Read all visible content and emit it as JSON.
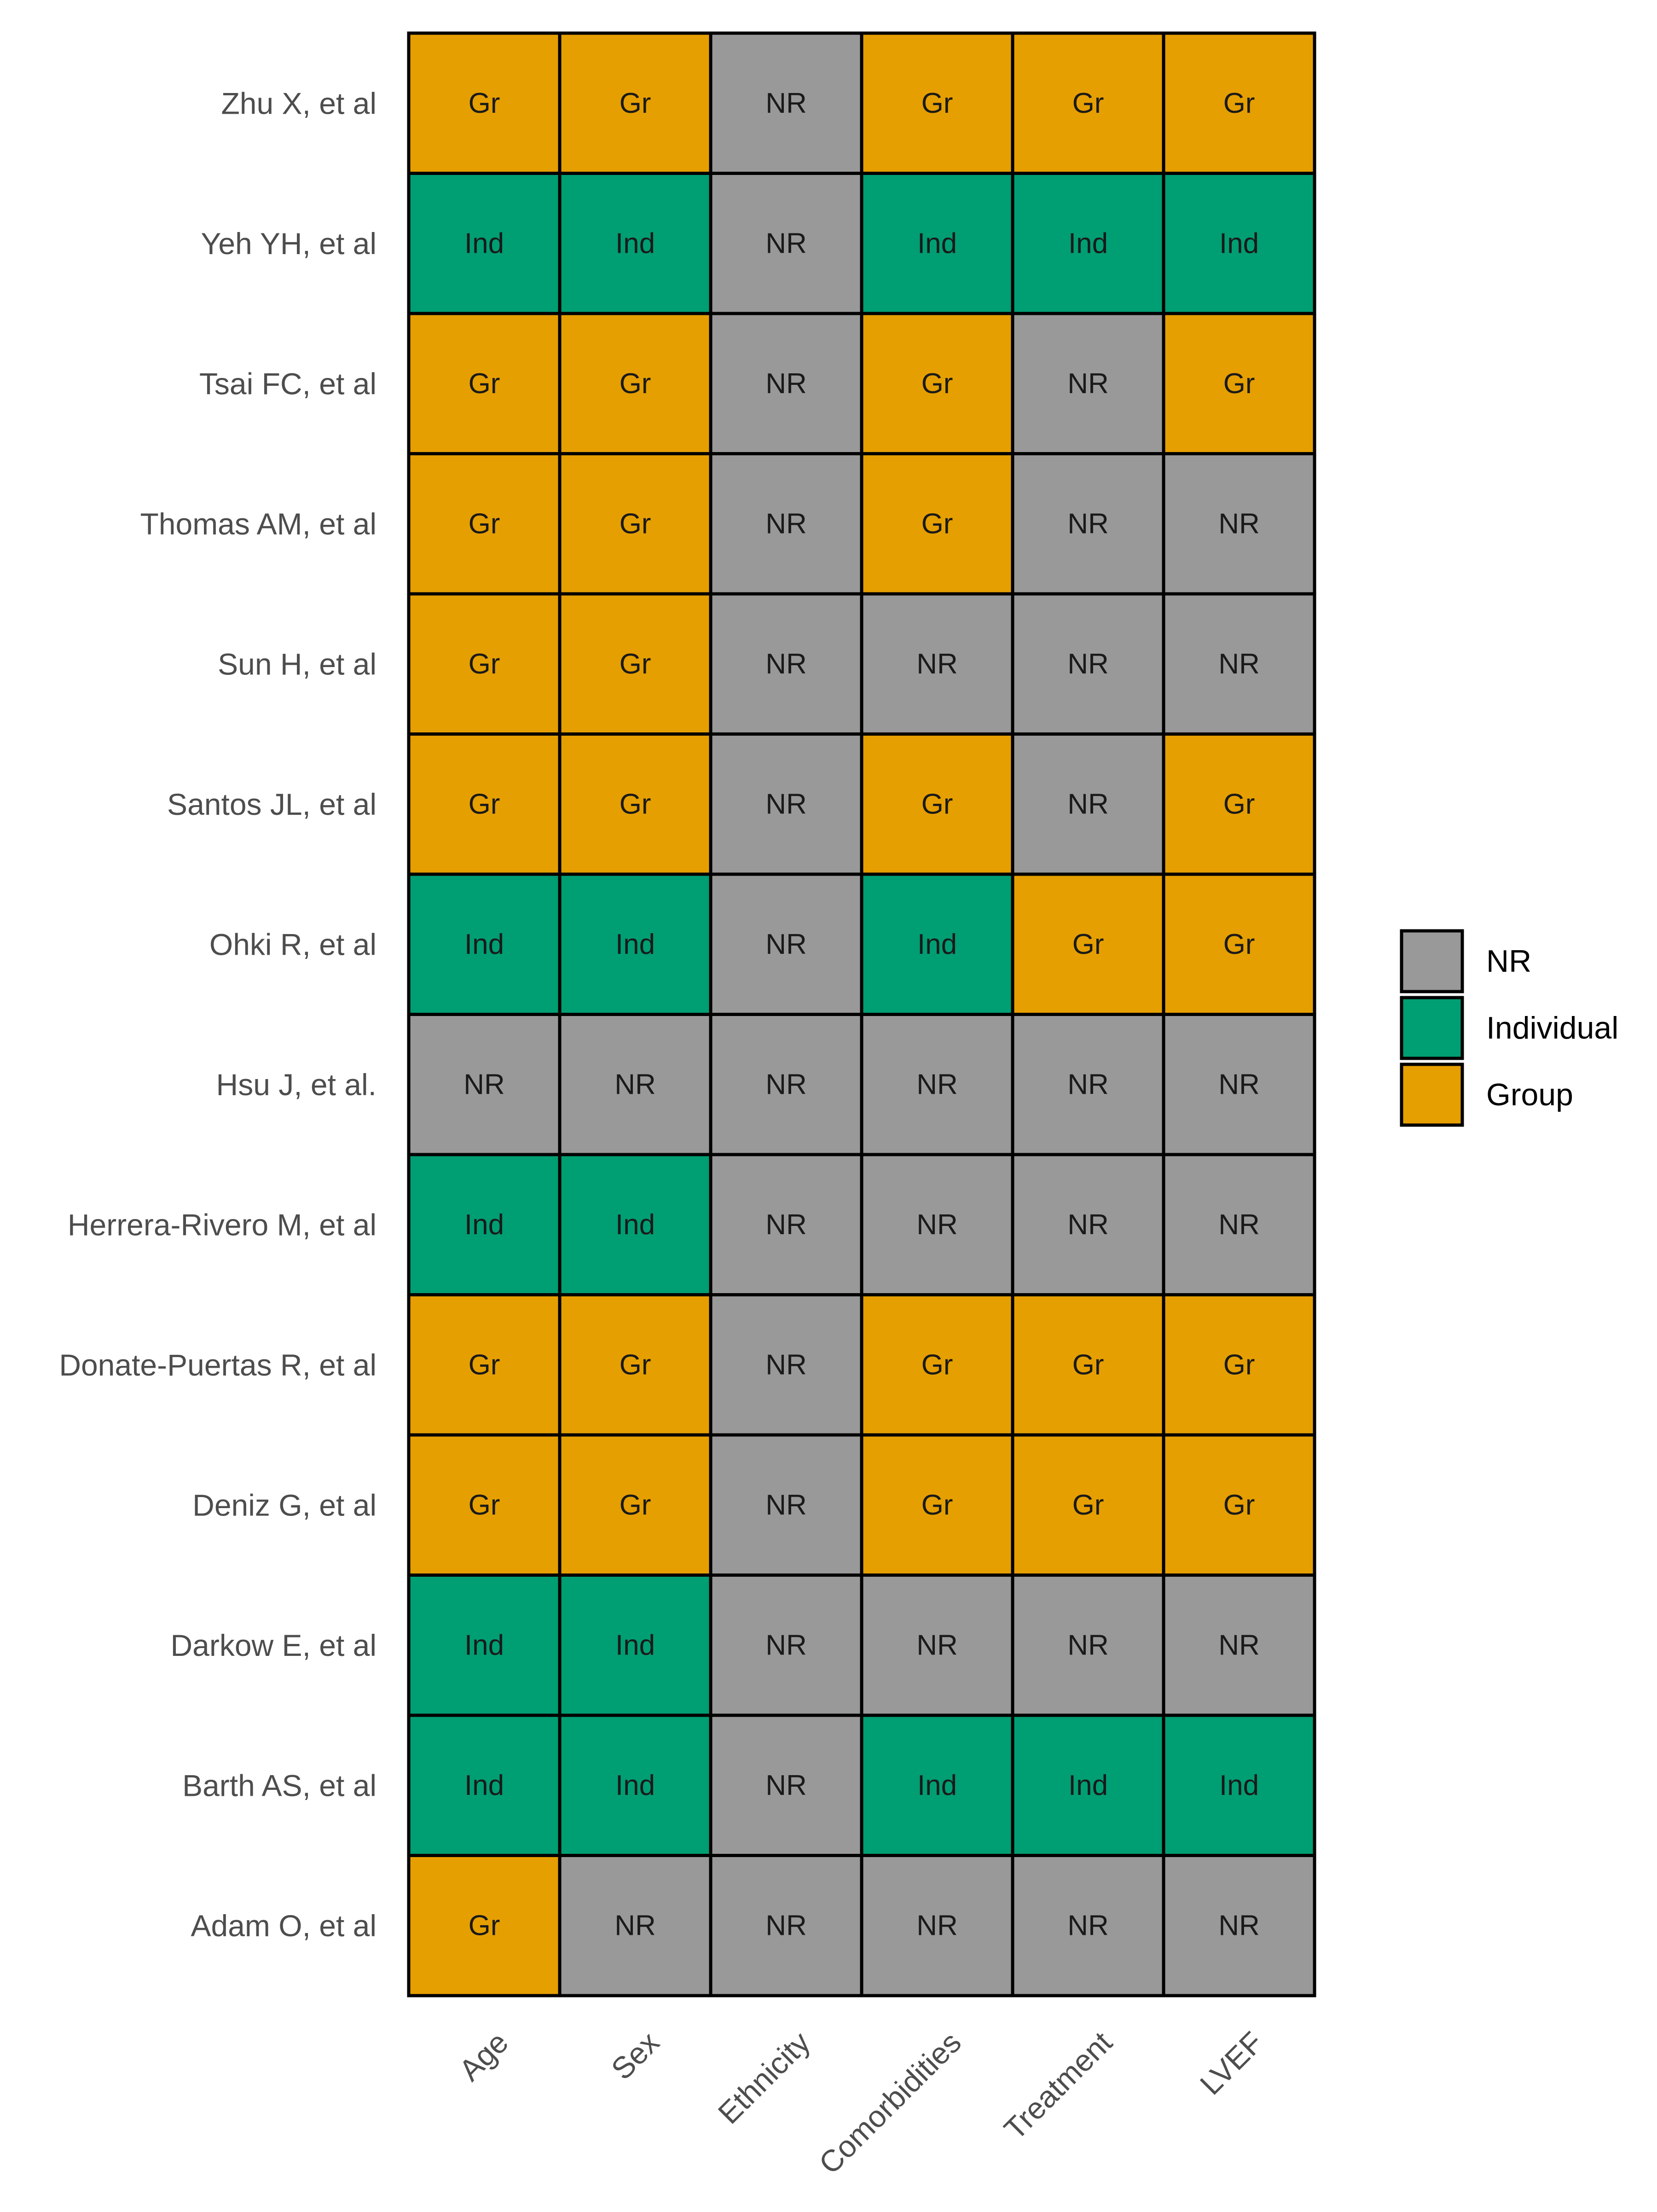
{
  "chart_data": {
    "type": "heatmap",
    "title": "",
    "xlabel": "",
    "ylabel": "",
    "columns": [
      "Age",
      "Sex",
      "Ethnicity",
      "Comorbidities",
      "Treatment",
      "LVEF"
    ],
    "rows": [
      {
        "study": "Zhu X, et al",
        "values": [
          "Gr",
          "Gr",
          "NR",
          "Gr",
          "Gr",
          "Gr"
        ]
      },
      {
        "study": "Yeh YH, et al",
        "values": [
          "Ind",
          "Ind",
          "NR",
          "Ind",
          "Ind",
          "Ind"
        ]
      },
      {
        "study": "Tsai FC, et al",
        "values": [
          "Gr",
          "Gr",
          "NR",
          "Gr",
          "NR",
          "Gr"
        ]
      },
      {
        "study": "Thomas AM, et al",
        "values": [
          "Gr",
          "Gr",
          "NR",
          "Gr",
          "NR",
          "NR"
        ]
      },
      {
        "study": "Sun H, et al",
        "values": [
          "Gr",
          "Gr",
          "NR",
          "NR",
          "NR",
          "NR"
        ]
      },
      {
        "study": "Santos JL, et al",
        "values": [
          "Gr",
          "Gr",
          "NR",
          "Gr",
          "NR",
          "Gr"
        ]
      },
      {
        "study": "Ohki R, et al",
        "values": [
          "Ind",
          "Ind",
          "NR",
          "Ind",
          "Gr",
          "Gr"
        ]
      },
      {
        "study": "Hsu J, et al.",
        "values": [
          "NR",
          "NR",
          "NR",
          "NR",
          "NR",
          "NR"
        ]
      },
      {
        "study": "Herrera-Rivero M, et al",
        "values": [
          "Ind",
          "Ind",
          "NR",
          "NR",
          "NR",
          "NR"
        ]
      },
      {
        "study": "Donate-Puertas R, et al",
        "values": [
          "Gr",
          "Gr",
          "NR",
          "Gr",
          "Gr",
          "Gr"
        ]
      },
      {
        "study": "Deniz G, et al",
        "values": [
          "Gr",
          "Gr",
          "NR",
          "Gr",
          "Gr",
          "Gr"
        ]
      },
      {
        "study": "Darkow E, et al",
        "values": [
          "Ind",
          "Ind",
          "NR",
          "NR",
          "NR",
          "NR"
        ]
      },
      {
        "study": "Barth AS, et al",
        "values": [
          "Ind",
          "Ind",
          "NR",
          "Ind",
          "Ind",
          "Ind"
        ]
      },
      {
        "study": "Adam O, et al",
        "values": [
          "Gr",
          "NR",
          "NR",
          "NR",
          "NR",
          "NR"
        ]
      }
    ],
    "categories": [
      {
        "code": "NR",
        "label": "NR",
        "color": "#999999"
      },
      {
        "code": "Ind",
        "label": "Individual",
        "color": "#009E73"
      },
      {
        "code": "Gr",
        "label": "Group",
        "color": "#E69F00"
      }
    ],
    "legend_position": "right",
    "grid": false
  }
}
